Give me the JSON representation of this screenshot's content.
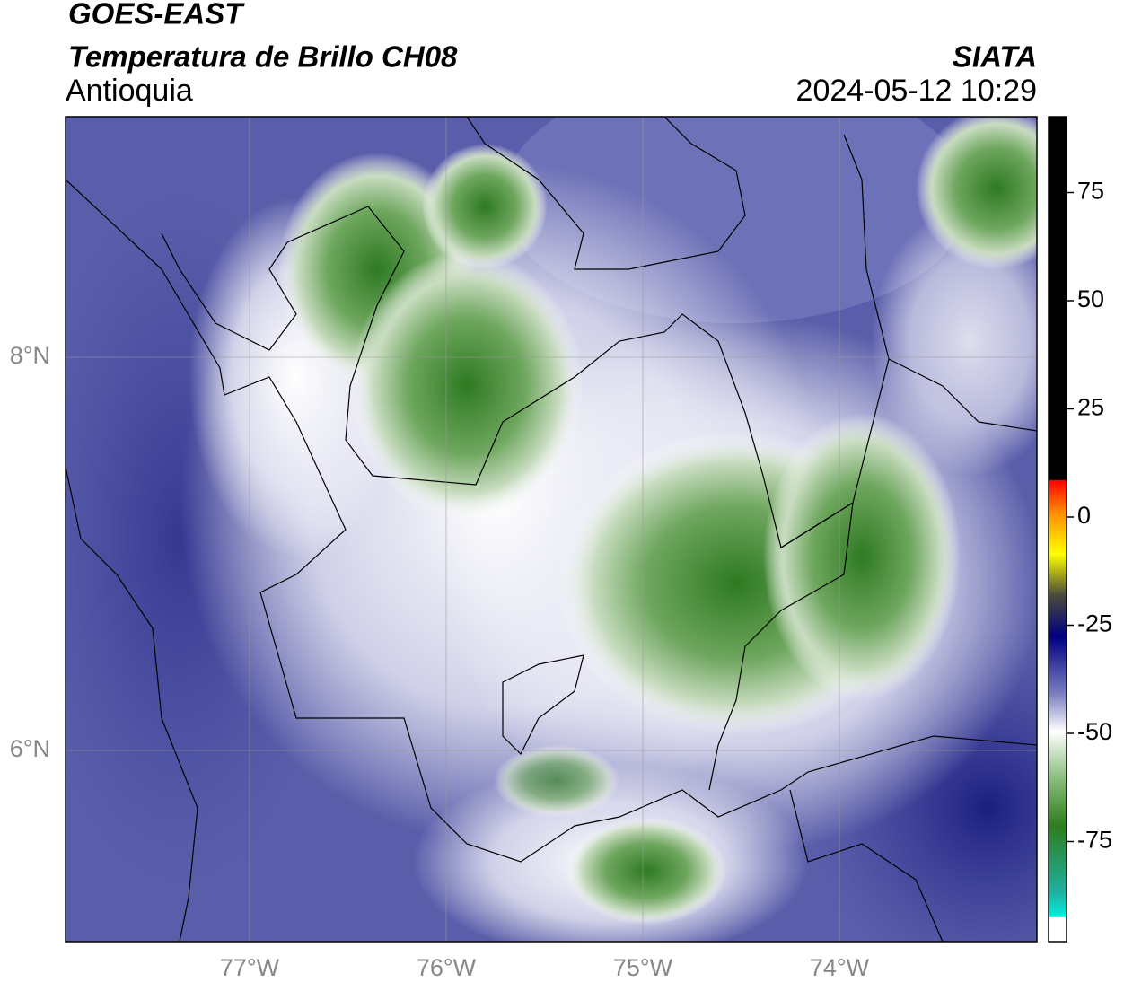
{
  "header": {
    "satellite": "GOES-EAST",
    "product": "Temperatura de Brillo CH08",
    "region": "Antioquia",
    "agency": "SIATA",
    "datetime": "2024-05-12 10:29"
  },
  "map": {
    "lon_ticks": [
      "77°W",
      "76°W",
      "75°W",
      "74°W"
    ],
    "lat_ticks": [
      "8°N",
      "6°N"
    ]
  },
  "colorbar": {
    "ticks": [
      75,
      50,
      25,
      0,
      -25,
      -50,
      -75
    ]
  }
}
